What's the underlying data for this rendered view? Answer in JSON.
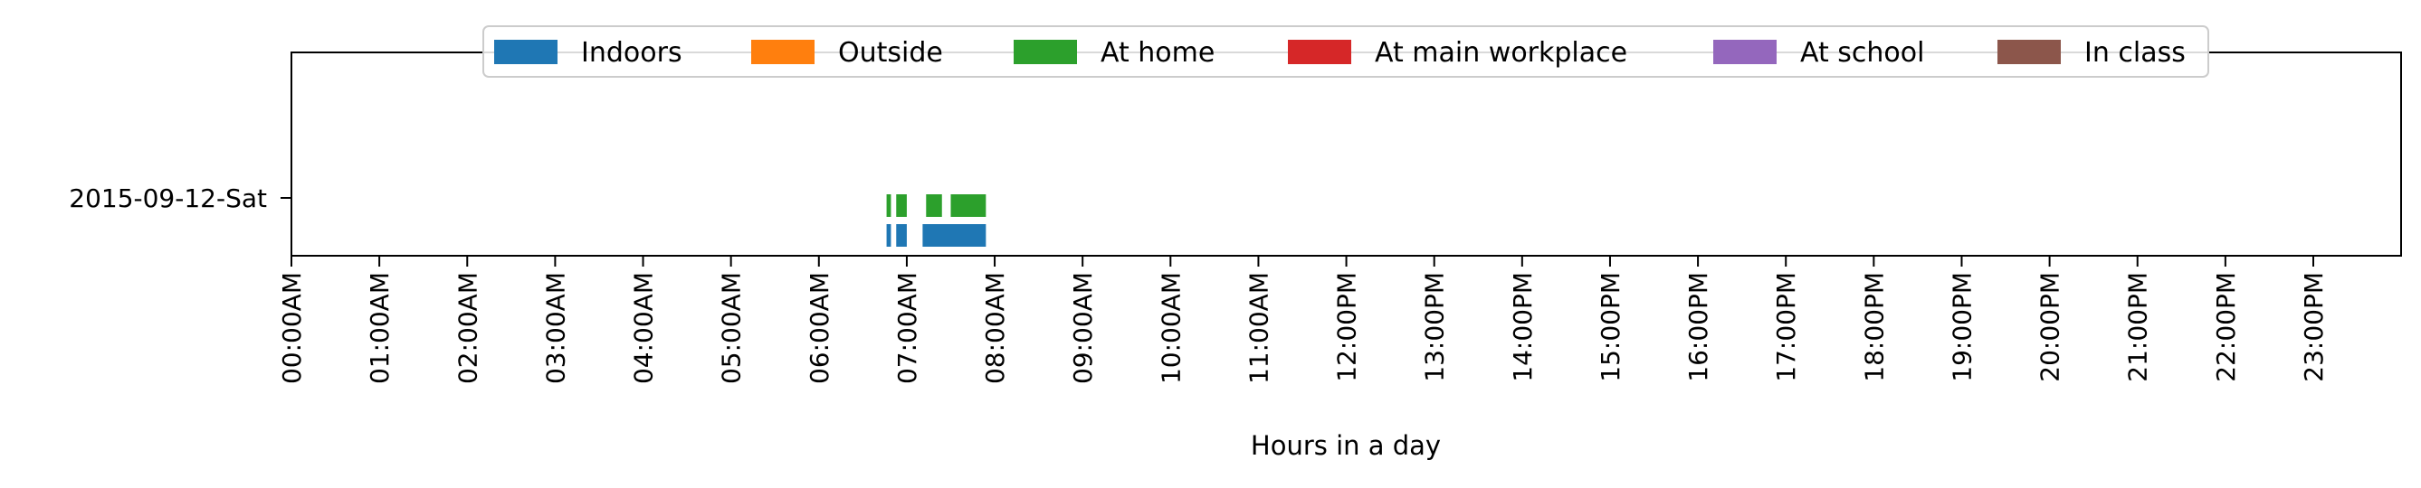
{
  "chart_data": {
    "type": "bar",
    "orientation": "horizontal",
    "xlabel": "Hours in a day",
    "ylabel": "",
    "xlim": [
      0,
      24
    ],
    "categories": [
      "2015-09-12-Sat"
    ],
    "x_ticks": [
      {
        "value": 0,
        "label": "00:00AM"
      },
      {
        "value": 1,
        "label": "01:00AM"
      },
      {
        "value": 2,
        "label": "02:00AM"
      },
      {
        "value": 3,
        "label": "03:00AM"
      },
      {
        "value": 4,
        "label": "04:00AM"
      },
      {
        "value": 5,
        "label": "05:00AM"
      },
      {
        "value": 6,
        "label": "06:00AM"
      },
      {
        "value": 7,
        "label": "07:00AM"
      },
      {
        "value": 8,
        "label": "08:00AM"
      },
      {
        "value": 9,
        "label": "09:00AM"
      },
      {
        "value": 10,
        "label": "10:00AM"
      },
      {
        "value": 11,
        "label": "11:00AM"
      },
      {
        "value": 12,
        "label": "12:00PM"
      },
      {
        "value": 13,
        "label": "13:00PM"
      },
      {
        "value": 14,
        "label": "14:00PM"
      },
      {
        "value": 15,
        "label": "15:00PM"
      },
      {
        "value": 16,
        "label": "16:00PM"
      },
      {
        "value": 17,
        "label": "17:00PM"
      },
      {
        "value": 18,
        "label": "18:00PM"
      },
      {
        "value": 19,
        "label": "19:00PM"
      },
      {
        "value": 20,
        "label": "20:00PM"
      },
      {
        "value": 21,
        "label": "21:00PM"
      },
      {
        "value": 22,
        "label": "22:00PM"
      },
      {
        "value": 23,
        "label": "23:00PM"
      }
    ],
    "legend_position": "top",
    "grid": false,
    "series": [
      {
        "name": "Indoors",
        "color": "#1f77b4",
        "intervals": [
          [
            6.77,
            6.82
          ],
          [
            6.88,
            7.0
          ],
          [
            7.18,
            7.9
          ]
        ]
      },
      {
        "name": "Outside",
        "color": "#ff7f0e",
        "intervals": []
      },
      {
        "name": "At home",
        "color": "#2ca02c",
        "intervals": [
          [
            6.77,
            6.82
          ],
          [
            6.88,
            7.0
          ],
          [
            7.22,
            7.4
          ],
          [
            7.5,
            7.9
          ]
        ]
      },
      {
        "name": "At main workplace",
        "color": "#d62728",
        "intervals": []
      },
      {
        "name": "At school",
        "color": "#9467bd",
        "intervals": []
      },
      {
        "name": "In class",
        "color": "#8c564b",
        "intervals": []
      }
    ]
  }
}
